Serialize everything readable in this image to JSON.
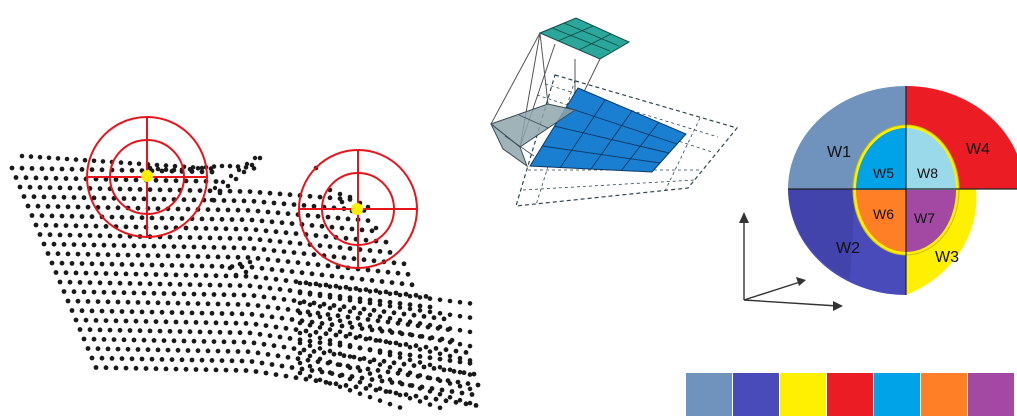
{
  "sphere": {
    "outer_sectors": [
      {
        "label": "W1",
        "color": "#6f93bd"
      },
      {
        "label": "W4",
        "color": "#ec1c24"
      },
      {
        "label": "W2",
        "color": "#4a4bbb"
      },
      {
        "label": "W3",
        "color": "#ffef00"
      }
    ],
    "inner_sectors": [
      {
        "label": "W5",
        "color": "#00a2e8"
      },
      {
        "label": "W8",
        "color": "#99d9ea"
      },
      {
        "label": "W6",
        "color": "#ff7f27"
      },
      {
        "label": "W7",
        "color": "#a349a4"
      }
    ]
  },
  "swatches": [
    "#6f93bd",
    "#4a4bbb",
    "#ffef00",
    "#ec1c24",
    "#00a2e8",
    "#ff7f27",
    "#a349a4"
  ],
  "colors": {
    "point": "#1a1a1a",
    "target_ring": "#e8141c",
    "key_point": "#ffee00",
    "kernel": "#2ba69a",
    "input_grid": "#1a7fd0",
    "context": "#8fa6ad"
  }
}
